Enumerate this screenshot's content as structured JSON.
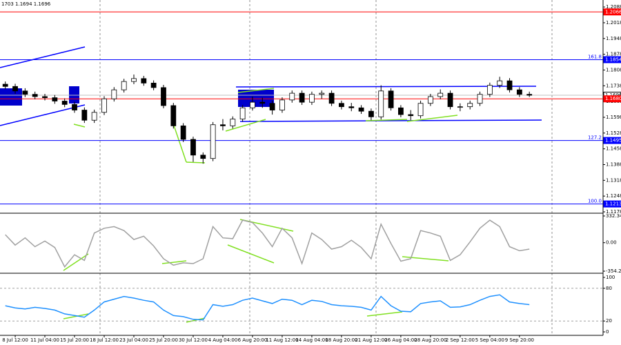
{
  "header_text": "1703 1.1694 1.1696",
  "chart_data": [
    {
      "type": "candlestick",
      "categories": [
        null,
        "8 Jul 12:00",
        null,
        null,
        "11 Jul 04:00",
        null,
        null,
        "15 Jul 20:00",
        null,
        null,
        "18 Jul 12:00",
        null,
        null,
        "23 Jul 04:00",
        null,
        null,
        "25 Jul 20:00",
        null,
        null,
        "30 Jul 12:00",
        null,
        null,
        "4 Aug 04:00",
        null,
        null,
        "6 Aug 20:00",
        null,
        null,
        "11 Aug 12:00",
        null,
        null,
        "14 Aug 04:00",
        null,
        null,
        "18 Aug 20:00",
        null,
        null,
        "21 Aug 12:00",
        null,
        null,
        "26 Aug 04:00",
        null,
        null,
        "28 Aug 20:00",
        null,
        null,
        "2 Sep 12:00",
        null,
        null,
        "5 Sep 04:00",
        null,
        null,
        "9 Sep 20:00",
        null
      ],
      "open": [
        1.1745,
        1.1735,
        1.1715,
        1.17,
        1.169,
        1.1685,
        1.167,
        1.1655,
        1.163,
        1.1585,
        1.162,
        1.168,
        1.172,
        1.1757,
        1.177,
        1.175,
        1.173,
        1.165,
        1.156,
        1.15,
        1.143,
        1.1415,
        1.1565,
        1.156,
        1.159,
        1.164,
        1.1665,
        1.166,
        1.163,
        1.1675,
        1.1705,
        1.1665,
        1.17,
        1.1705,
        1.166,
        1.1645,
        1.164,
        1.1625,
        1.16,
        1.1715,
        1.164,
        1.161,
        1.1605,
        1.166,
        1.169,
        1.1705,
        1.1645,
        1.1645,
        1.166,
        1.17,
        1.174,
        1.176,
        1.172,
        1.17
      ],
      "high": [
        1.1757,
        1.1747,
        1.1727,
        1.1712,
        1.1702,
        1.1697,
        1.1682,
        1.1667,
        1.1642,
        1.1632,
        1.1692,
        1.1732,
        1.1769,
        1.1788,
        1.1782,
        1.1762,
        1.1742,
        1.1662,
        1.1572,
        1.1512,
        1.1442,
        1.1577,
        1.159,
        1.1602,
        1.1652,
        1.169,
        1.1685,
        1.1672,
        1.1687,
        1.1717,
        1.1717,
        1.1712,
        1.1717,
        1.1717,
        1.1672,
        1.1662,
        1.1652,
        1.1637,
        1.174,
        1.1727,
        1.1652,
        1.163,
        1.1672,
        1.1702,
        1.1722,
        1.1717,
        1.166,
        1.1672,
        1.1712,
        1.1752,
        1.1778,
        1.1772,
        1.1732,
        1.1712
      ],
      "low": [
        1.1723,
        1.1703,
        1.1688,
        1.1678,
        1.1673,
        1.1658,
        1.1643,
        1.1618,
        1.1573,
        1.1573,
        1.1608,
        1.1668,
        1.1708,
        1.1745,
        1.1738,
        1.1718,
        1.1638,
        1.1548,
        1.1488,
        1.14,
        1.1392,
        1.1403,
        1.154,
        1.1548,
        1.1578,
        1.1628,
        1.164,
        1.161,
        1.1618,
        1.1663,
        1.1653,
        1.1653,
        1.168,
        1.1648,
        1.1633,
        1.1625,
        1.1613,
        1.1585,
        1.1588,
        1.1628,
        1.1598,
        1.1585,
        1.1593,
        1.1648,
        1.1678,
        1.1633,
        1.1625,
        1.1633,
        1.1648,
        1.1688,
        1.1728,
        1.1708,
        1.1688,
        1.1688
      ],
      "close": [
        1.1735,
        1.1715,
        1.17,
        1.169,
        1.1685,
        1.167,
        1.1655,
        1.163,
        1.1585,
        1.162,
        1.168,
        1.172,
        1.1757,
        1.177,
        1.175,
        1.173,
        1.165,
        1.156,
        1.15,
        1.143,
        1.1415,
        1.1565,
        1.156,
        1.159,
        1.164,
        1.1665,
        1.166,
        1.163,
        1.1675,
        1.1705,
        1.1665,
        1.17,
        1.1705,
        1.166,
        1.1645,
        1.164,
        1.1625,
        1.16,
        1.1715,
        1.164,
        1.161,
        1.1605,
        1.166,
        1.169,
        1.1705,
        1.1645,
        1.1645,
        1.166,
        1.17,
        1.174,
        1.176,
        1.172,
        1.17,
        1.1696
      ],
      "up_color": "#ffffff",
      "down_color": "#000000",
      "ylim": [
        1.1175,
        1.2119
      ],
      "yticks": [
        1.2088,
        1.2018,
        1.1948,
        1.1878,
        1.1808,
        1.1738,
        1.1668,
        1.1598,
        1.1528,
        1.1458,
        1.1388,
        1.1318,
        1.1248,
        1.1178
      ],
      "levels": [
        {
          "value": 1.2066,
          "color": "#ff0000"
        },
        {
          "value": 1.1854,
          "color": "#0000ff",
          "ratio": "161.8"
        },
        {
          "value": 1.1495,
          "color": "#0000ff",
          "ratio": "127.2"
        },
        {
          "value": 1.1213,
          "color": "#0000ff",
          "ratio": "100.0"
        },
        {
          "value": 1.1696,
          "color": "#c0c0c0"
        },
        {
          "value": 1.168,
          "label": "1.1680",
          "color": "#ff0000"
        }
      ]
    },
    {
      "type": "line",
      "color": "#a0a0a0",
      "values": [
        100,
        -30,
        60,
        -50,
        20,
        -60,
        -300,
        -150,
        -220,
        120,
        180,
        200,
        150,
        40,
        80,
        -40,
        -200,
        -280,
        -250,
        -260,
        -200,
        200,
        60,
        50,
        280,
        250,
        120,
        -50,
        180,
        60,
        -260,
        120,
        40,
        -80,
        -50,
        30,
        -60,
        -200,
        230,
        -10,
        -230,
        -200,
        150,
        120,
        80,
        -220,
        -150,
        10,
        180,
        280,
        200,
        -50,
        -100,
        -80
      ],
      "ylim": [
        -354.279,
        332.3467
      ],
      "yticks": [
        332.3467,
        {
          "value": 0,
          "label": "0.00"
        },
        -354.279
      ],
      "grid": false
    },
    {
      "type": "line",
      "color": "#1e90ff",
      "values": [
        48,
        44,
        42,
        45,
        43,
        40,
        33,
        30,
        27,
        40,
        55,
        60,
        65,
        62,
        58,
        55,
        40,
        30,
        28,
        23,
        22,
        50,
        47,
        50,
        58,
        62,
        57,
        52,
        60,
        58,
        50,
        58,
        56,
        50,
        48,
        47,
        45,
        40,
        65,
        48,
        38,
        37,
        52,
        55,
        57,
        45,
        46,
        50,
        58,
        65,
        68,
        55,
        52,
        50
      ],
      "ylim": [
        0,
        100
      ],
      "yticks": [
        100,
        80,
        20,
        0
      ],
      "grid": true
    }
  ]
}
